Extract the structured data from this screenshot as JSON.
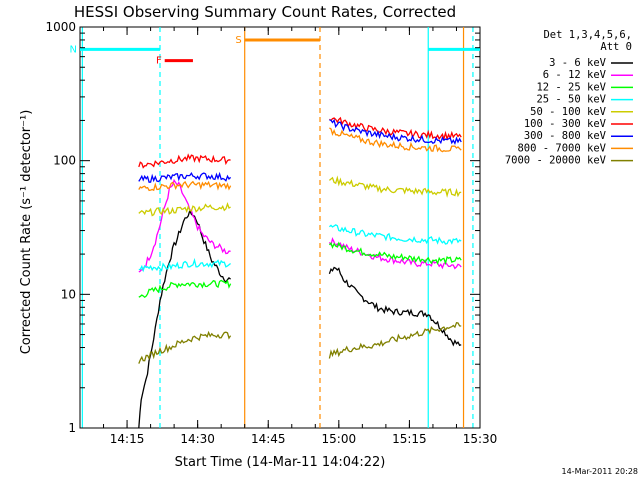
{
  "chart_data": {
    "type": "line",
    "title": "HESSI Observing Summary Count Rates, Corrected",
    "xlabel": "Start Time (14-Mar-11 14:04:22)",
    "ylabel": "Corrected Count Rate (s⁻¹ detector⁻¹)",
    "yscale": "log",
    "ylim": [
      1,
      1000
    ],
    "xlim_min": [
      5,
      90
    ],
    "x_ticks": [
      {
        "min": 15,
        "label": "14:15"
      },
      {
        "min": 30,
        "label": "14:30"
      },
      {
        "min": 45,
        "label": "14:45"
      },
      {
        "min": 60,
        "label": "15:00"
      },
      {
        "min": 75,
        "label": "15:15"
      },
      {
        "min": 90,
        "label": "15:30"
      }
    ],
    "y_ticks": [
      {
        "value": 1,
        "label": "1"
      },
      {
        "value": 10,
        "label": "10"
      },
      {
        "value": 100,
        "label": "100"
      },
      {
        "value": 1000,
        "label": "1000"
      }
    ],
    "legend_header": [
      "Det 1,3,4,5,6,",
      "Att 0"
    ],
    "legend_position": "right",
    "timestamp": "14-Mar-2011 20:28",
    "series": [
      {
        "name": "3 - 6 keV",
        "color": "#000000",
        "segments": [
          {
            "x": [
              17.5,
              18,
              19,
              20,
              21,
              22,
              23,
              24,
              25,
              26,
              27,
              28,
              29,
              30,
              31,
              32,
              33,
              34,
              35,
              36,
              37
            ],
            "y": [
              1.0,
              1.7,
              2.3,
              3.5,
              5.5,
              9,
              13,
              18,
              23,
              28,
              35,
              40,
              40,
              35,
              27,
              22,
              18,
              16,
              14,
              13,
              13
            ]
          },
          {
            "x": [
              58,
              59,
              60,
              61,
              62,
              63,
              64,
              65,
              66,
              67,
              68,
              69,
              70,
              71,
              72,
              73,
              74,
              75,
              76,
              77,
              78,
              79,
              80,
              81,
              82,
              83,
              84,
              85,
              86
            ],
            "y": [
              14,
              16,
              15,
              13,
              12,
              11,
              10,
              9.5,
              9,
              8.5,
              8,
              7.8,
              7.6,
              7.5,
              7.4,
              7.4,
              7.3,
              7.3,
              7.3,
              7.2,
              7.2,
              7.2,
              6.5,
              6,
              5.5,
              5,
              4.5,
              4.3,
              4.2
            ]
          }
        ]
      },
      {
        "name": "6 - 12 keV",
        "color": "#ff00ff",
        "segments": [
          {
            "x": [
              17.5,
              18,
              19,
              20,
              21,
              22,
              23,
              24,
              25,
              26,
              27,
              28,
              29,
              30,
              31,
              32,
              33,
              34,
              35,
              36,
              37
            ],
            "y": [
              14,
              15,
              17,
              20,
              25,
              33,
              45,
              60,
              68,
              65,
              55,
              45,
              38,
              32,
              28,
              26,
              24,
              23,
              22,
              21,
              21
            ]
          },
          {
            "x": [
              58,
              60,
              62,
              64,
              66,
              68,
              70,
              72,
              74,
              76,
              78,
              80,
              82,
              84,
              86
            ],
            "y": [
              25,
              24,
              22,
              21,
              20,
              19,
              18.5,
              18,
              17.5,
              17,
              17,
              17,
              16.5,
              16.5,
              16
            ]
          }
        ]
      },
      {
        "name": "12 - 25 keV",
        "color": "#00ff00",
        "segments": [
          {
            "x": [
              17.5,
              20,
              22,
              24,
              26,
              28,
              30,
              32,
              34,
              36,
              37
            ],
            "y": [
              9.5,
              10.5,
              11,
              11.5,
              12,
              12,
              12,
              12,
              12,
              12,
              12
            ]
          },
          {
            "x": [
              58,
              60,
              62,
              64,
              66,
              68,
              70,
              72,
              74,
              76,
              78,
              80,
              82,
              84,
              86
            ],
            "y": [
              24,
              23,
              22,
              21,
              20.5,
              20,
              19.5,
              19,
              19,
              18.5,
              18.5,
              18,
              18,
              18,
              18
            ]
          }
        ]
      },
      {
        "name": "25 - 50 keV",
        "color": "#00ffff",
        "segments": [
          {
            "x": [
              17.5,
              20,
              22,
              24,
              26,
              28,
              30,
              32,
              34,
              36,
              37
            ],
            "y": [
              15.5,
              16,
              16,
              16,
              16.5,
              17,
              17,
              17,
              17,
              17,
              17
            ]
          },
          {
            "x": [
              58,
              60,
              62,
              64,
              66,
              68,
              70,
              72,
              74,
              76,
              78,
              80,
              82,
              84,
              86
            ],
            "y": [
              32,
              31,
              30,
              29,
              28,
              27.5,
              27,
              26.5,
              26,
              26,
              25.5,
              25.5,
              25,
              25,
              25
            ]
          }
        ]
      },
      {
        "name": "50 - 100 keV",
        "color": "#cccc00",
        "segments": [
          {
            "x": [
              17.5,
              20,
              22,
              24,
              26,
              28,
              30,
              32,
              34,
              36,
              37
            ],
            "y": [
              40,
              41,
              42,
              42,
              43,
              44,
              44,
              45,
              45,
              45,
              45
            ]
          },
          {
            "x": [
              58,
              60,
              62,
              64,
              66,
              68,
              70,
              72,
              74,
              76,
              78,
              80,
              82,
              84,
              86
            ],
            "y": [
              72,
              70,
              68,
              66,
              64,
              62,
              61,
              60,
              60,
              59,
              59,
              58,
              58,
              58,
              58
            ]
          }
        ]
      },
      {
        "name": "100 - 300 keV",
        "color": "#ff0000",
        "segments": [
          {
            "x": [
              17.5,
              20,
              22,
              24,
              26,
              28,
              30,
              32,
              34,
              36,
              37
            ],
            "y": [
              92,
              95,
              97,
              100,
              102,
              104,
              104,
              103,
              102,
              101,
              101
            ]
          },
          {
            "x": [
              58,
              60,
              62,
              64,
              66,
              68,
              70,
              72,
              74,
              76,
              78,
              80,
              82,
              84,
              86
            ],
            "y": [
              210,
              200,
              190,
              182,
              175,
              170,
              166,
              163,
              160,
              158,
              156,
              155,
              154,
              153,
              150
            ]
          }
        ]
      },
      {
        "name": "300 - 800 keV",
        "color": "#0000ff",
        "segments": [
          {
            "x": [
              17.5,
              20,
              22,
              24,
              26,
              28,
              30,
              32,
              34,
              36,
              37
            ],
            "y": [
              72,
              73,
              74,
              75,
              76,
              77,
              77,
              77,
              76,
              75,
              75
            ]
          },
          {
            "x": [
              58,
              60,
              62,
              64,
              66,
              68,
              70,
              72,
              74,
              76,
              78,
              80,
              82,
              84,
              86
            ],
            "y": [
              195,
              185,
              175,
              168,
              162,
              157,
              153,
              150,
              148,
              146,
              144,
              142,
              141,
              140,
              138
            ]
          }
        ]
      },
      {
        "name": "800 - 7000 keV",
        "color": "#ff8c00",
        "segments": [
          {
            "x": [
              17.5,
              20,
              22,
              24,
              26,
              28,
              30,
              32,
              34,
              36,
              37
            ],
            "y": [
              62,
              63,
              64,
              65,
              66,
              66,
              66,
              66,
              65,
              65,
              65
            ]
          },
          {
            "x": [
              58,
              60,
              62,
              64,
              66,
              68,
              70,
              72,
              74,
              76,
              78,
              80,
              82,
              84,
              86
            ],
            "y": [
              170,
              160,
              152,
              146,
              140,
              136,
              132,
              130,
              128,
              126,
              125,
              124,
              123,
              122,
              120
            ]
          }
        ]
      },
      {
        "name": "7000 - 20000 keV",
        "color": "#808000",
        "segments": [
          {
            "x": [
              17.5,
              20,
              22,
              24,
              26,
              28,
              30,
              32,
              34,
              36,
              37
            ],
            "y": [
              3.2,
              3.5,
              3.8,
              4.0,
              4.3,
              4.6,
              4.8,
              4.9,
              5.0,
              5.0,
              4.9
            ]
          },
          {
            "x": [
              58,
              60,
              62,
              64,
              66,
              68,
              70,
              72,
              74,
              76,
              78,
              80,
              82,
              84,
              86
            ],
            "y": [
              3.5,
              3.7,
              3.9,
              4.0,
              4.1,
              4.2,
              4.4,
              4.6,
              4.8,
              5.0,
              5.2,
              5.4,
              5.6,
              5.8,
              5.8
            ]
          }
        ]
      }
    ],
    "flag_bars": [
      {
        "label": "F",
        "color": "#ff0000",
        "x": [
          23,
          29
        ],
        "y": 560
      },
      {
        "label": "N",
        "color": "#00ffff",
        "x": [
          5,
          22
        ],
        "y": 680
      },
      {
        "label": "S",
        "color": "#ff8c00",
        "x": [
          40,
          56
        ],
        "y": 800
      },
      {
        "label": "",
        "color": "#00ffff",
        "x": [
          79,
          90
        ],
        "y": 680
      }
    ],
    "vlines": [
      {
        "x": 5.5,
        "color": "#00ffff",
        "style": "solid"
      },
      {
        "x": 22,
        "color": "#00ffff",
        "style": "dashed"
      },
      {
        "x": 40,
        "color": "#ff8c00",
        "style": "solid"
      },
      {
        "x": 56,
        "color": "#ff8c00",
        "style": "dashed"
      },
      {
        "x": 79,
        "color": "#00ffff",
        "style": "solid"
      },
      {
        "x": 86.5,
        "color": "#ff8c00",
        "style": "solid"
      },
      {
        "x": 88.5,
        "color": "#00ffff",
        "style": "dashed"
      }
    ]
  }
}
